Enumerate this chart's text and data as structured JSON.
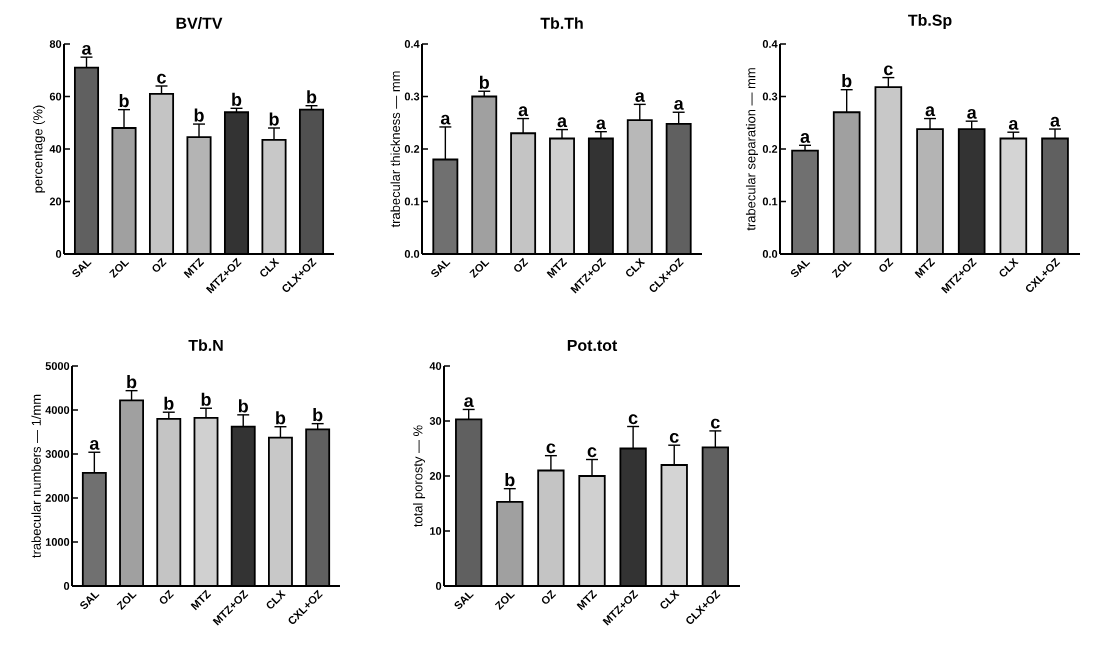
{
  "chart_data": [
    {
      "type": "bar",
      "title": "BV/TV",
      "ylabel": "percentage (%)",
      "categories": [
        "SAL",
        "ZOL",
        "OZ",
        "MTZ",
        "MTZ+OZ",
        "CLX",
        "CLX+OZ"
      ],
      "values": [
        71,
        48,
        61,
        44.5,
        54,
        43.5,
        55
      ],
      "errors": [
        4,
        7,
        3,
        5,
        1.5,
        4.5,
        1.5
      ],
      "colors": [
        "#606060",
        "#a0a0a0",
        "#c4c4c4",
        "#b4b4b4",
        "#333333",
        "#c8c8c8",
        "#505050"
      ],
      "ylim": [
        0,
        80
      ],
      "yticks": [
        0,
        20,
        40,
        60,
        80
      ],
      "annotations": [
        {
          "text": "a",
          "x": "SAL",
          "y": 75
        },
        {
          "text": "b",
          "x": "ZOL",
          "y": 55
        },
        {
          "text": "c",
          "x": "OZ",
          "y": 64
        },
        {
          "text": "b",
          "x": "MTZ",
          "y": 49.5
        },
        {
          "text": "b",
          "x": "MTZ+OZ",
          "y": 55.5
        },
        {
          "text": "b",
          "x": "CLX",
          "y": 48
        },
        {
          "text": "b",
          "x": "CLX+OZ",
          "y": 56.5
        }
      ]
    },
    {
      "type": "bar",
      "title": "Tb.Th",
      "ylabel": "trabecular thickness — mm",
      "categories": [
        "SAL",
        "ZOL",
        "OZ",
        "MTZ",
        "MTZ+OZ",
        "CLX",
        "CLX+OZ"
      ],
      "values": [
        0.18,
        0.3,
        0.23,
        0.22,
        0.22,
        0.255,
        0.248
      ],
      "errors": [
        0.062,
        0.01,
        0.028,
        0.017,
        0.013,
        0.03,
        0.022
      ],
      "colors": [
        "#707070",
        "#a0a0a0",
        "#c4c4c4",
        "#d0d0d0",
        "#333333",
        "#b8b8b8",
        "#606060"
      ],
      "ylim": [
        0,
        0.4
      ],
      "yticks": [
        {
          "value": 0,
          "label": "0.0"
        },
        0.1,
        0.2,
        0.3,
        0.4
      ],
      "annotations": [
        {
          "text": "a",
          "x": "SAL",
          "y": 0.242
        },
        {
          "text": "b",
          "x": "ZOL",
          "y": 0.31
        },
        {
          "text": "a",
          "x": "OZ",
          "y": 0.258
        },
        {
          "text": "a",
          "x": "MTZ",
          "y": 0.237
        },
        {
          "text": "a",
          "x": "MTZ+OZ",
          "y": 0.233
        },
        {
          "text": "a",
          "x": "CLX",
          "y": 0.285
        },
        {
          "text": "a",
          "x": "CLX+OZ",
          "y": 0.27
        }
      ]
    },
    {
      "type": "bar",
      "title": "Tb.Sp",
      "ylabel": "trabecular separation — mm",
      "categories": [
        "SAL",
        "ZOL",
        "OZ",
        "MTZ",
        "MTZ+OZ",
        "CLX",
        "CXL+OZ"
      ],
      "values": [
        0.197,
        0.27,
        0.318,
        0.238,
        0.238,
        0.22,
        0.22
      ],
      "errors": [
        0.01,
        0.043,
        0.018,
        0.02,
        0.015,
        0.012,
        0.018
      ],
      "colors": [
        "#707070",
        "#a0a0a0",
        "#c8c8c8",
        "#b4b4b4",
        "#333333",
        "#d4d4d4",
        "#606060"
      ],
      "ylim": [
        0,
        0.4
      ],
      "yticks": [
        {
          "value": 0,
          "label": "0.0"
        },
        0.1,
        0.2,
        0.3,
        0.4
      ],
      "annotations": [
        {
          "text": "a",
          "x": "SAL",
          "y": 0.207
        },
        {
          "text": "b",
          "x": "ZOL",
          "y": 0.313
        },
        {
          "text": "c",
          "x": "OZ",
          "y": 0.336
        },
        {
          "text": "a",
          "x": "MTZ",
          "y": 0.258
        },
        {
          "text": "a",
          "x": "MTZ+OZ",
          "y": 0.253
        },
        {
          "text": "a",
          "x": "CLX",
          "y": 0.232
        },
        {
          "text": "a",
          "x": "CXL+OZ",
          "y": 0.238
        }
      ]
    },
    {
      "type": "bar",
      "title": "Tb.N",
      "ylabel": "trabecular numbers — 1/mm",
      "categories": [
        "SAL",
        "ZOL",
        "OZ",
        "MTZ",
        "MTZ+OZ",
        "CLX",
        "CXL+OZ"
      ],
      "values": [
        2570,
        4220,
        3800,
        3820,
        3620,
        3370,
        3560
      ],
      "errors": [
        470,
        220,
        150,
        220,
        270,
        250,
        130
      ],
      "colors": [
        "#707070",
        "#a0a0a0",
        "#c4c4c4",
        "#d0d0d0",
        "#333333",
        "#c8c8c8",
        "#606060"
      ],
      "ylim": [
        0,
        5000
      ],
      "yticks": [
        0,
        1000,
        2000,
        3000,
        4000,
        5000
      ],
      "annotations": [
        {
          "text": "a",
          "x": "SAL",
          "y": 3040
        },
        {
          "text": "b",
          "x": "ZOL",
          "y": 4440
        },
        {
          "text": "b",
          "x": "OZ",
          "y": 3950
        },
        {
          "text": "b",
          "x": "MTZ",
          "y": 4040
        },
        {
          "text": "b",
          "x": "MTZ+OZ",
          "y": 3890
        },
        {
          "text": "b",
          "x": "CLX",
          "y": 3620
        },
        {
          "text": "b",
          "x": "CXL+OZ",
          "y": 3690
        }
      ]
    },
    {
      "type": "bar",
      "title": "Pot.tot",
      "ylabel": "total porosty — %",
      "categories": [
        "SAL",
        "ZOL",
        "OZ",
        "MTZ",
        "MTZ+OZ",
        "CLX",
        "CLX+OZ"
      ],
      "values": [
        30.3,
        15.3,
        21,
        20,
        25,
        22,
        25.2
      ],
      "errors": [
        1.8,
        2.4,
        2.7,
        3,
        4,
        3.6,
        3
      ],
      "colors": [
        "#606060",
        "#a0a0a0",
        "#c4c4c4",
        "#d0d0d0",
        "#333333",
        "#d4d4d4",
        "#606060"
      ],
      "ylim": [
        0,
        40
      ],
      "yticks": [
        0,
        10,
        20,
        30,
        40
      ],
      "annotations": [
        {
          "text": "a",
          "x": "SAL",
          "y": 32.1
        },
        {
          "text": "b",
          "x": "ZOL",
          "y": 17.7
        },
        {
          "text": "c",
          "x": "OZ",
          "y": 23.7
        },
        {
          "text": "c",
          "x": "MTZ",
          "y": 23
        },
        {
          "text": "c",
          "x": "MTZ+OZ",
          "y": 29
        },
        {
          "text": "c",
          "x": "CLX",
          "y": 25.6
        },
        {
          "text": "c",
          "x": "CLX+OZ",
          "y": 28.2
        }
      ]
    }
  ]
}
